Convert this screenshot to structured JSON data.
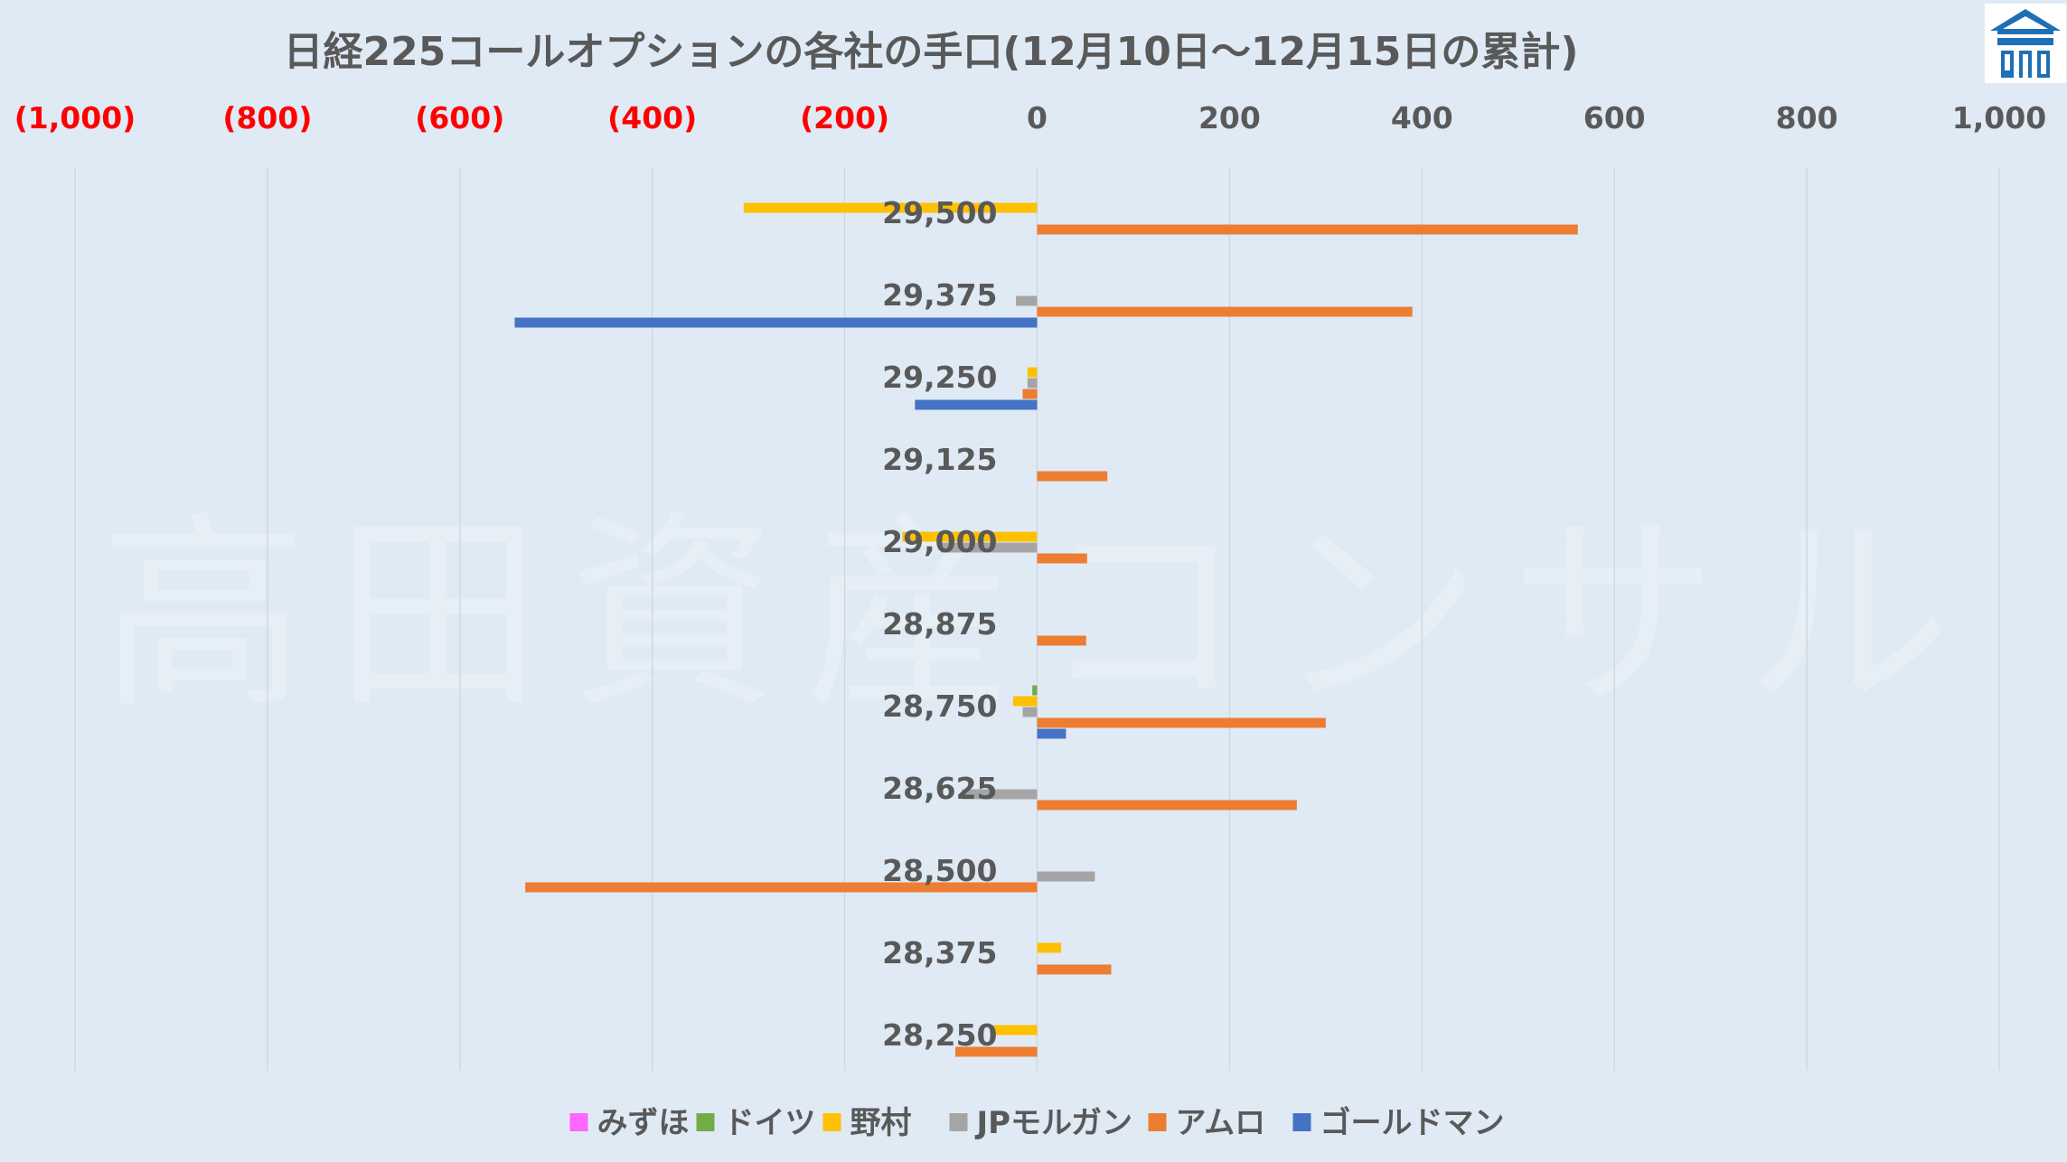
{
  "watermark": "高田資産コンサル",
  "logo": {
    "icon": "house-logo",
    "color": "#1f6fb5"
  },
  "chart_data": {
    "type": "bar",
    "orientation": "horizontal",
    "title": "日経225コールオプションの各社の手口(12月10日～12月15日の累計)",
    "xlim": [
      -1000,
      1000
    ],
    "x_ticks": [
      {
        "value": -1000,
        "label": "(1,000)"
      },
      {
        "value": -800,
        "label": "(800)"
      },
      {
        "value": -600,
        "label": "(600)"
      },
      {
        "value": -400,
        "label": "(400)"
      },
      {
        "value": -200,
        "label": "(200)"
      },
      {
        "value": 0,
        "label": "0"
      },
      {
        "value": 200,
        "label": "200"
      },
      {
        "value": 400,
        "label": "400"
      },
      {
        "value": 600,
        "label": "600"
      },
      {
        "value": 800,
        "label": "800"
      },
      {
        "value": 1000,
        "label": "1,000"
      }
    ],
    "negative_tick_color": "#ff0000",
    "grid": true,
    "legend_position": "bottom",
    "categories": [
      "29,500",
      "29,375",
      "29,250",
      "29,125",
      "29,000",
      "28,875",
      "28,750",
      "28,625",
      "28,500",
      "28,375",
      "28,250"
    ],
    "series": [
      {
        "name": "みずほ",
        "color": "#ff66ff",
        "values": [
          0,
          0,
          0,
          0,
          0,
          0,
          0,
          0,
          0,
          0,
          0
        ]
      },
      {
        "name": "ドイツ",
        "color": "#70ad47",
        "values": [
          0,
          0,
          0,
          0,
          0,
          0,
          -5,
          0,
          0,
          0,
          0
        ]
      },
      {
        "name": "野村",
        "color": "#ffc000",
        "values": [
          -305,
          0,
          -10,
          0,
          -140,
          0,
          -25,
          0,
          0,
          25,
          -45
        ]
      },
      {
        "name": "JPモルガン",
        "color": "#a5a5a5",
        "values": [
          0,
          -22,
          -10,
          0,
          -100,
          0,
          -15,
          -78,
          60,
          0,
          0
        ]
      },
      {
        "name": "アムロ",
        "color": "#ed7d31",
        "values": [
          562,
          390,
          -15,
          73,
          52,
          51,
          300,
          270,
          -532,
          77,
          -85
        ]
      },
      {
        "name": "ゴールドマン",
        "color": "#4472c4",
        "values": [
          0,
          -543,
          -127,
          0,
          0,
          0,
          30,
          0,
          0,
          0,
          0
        ]
      }
    ]
  }
}
